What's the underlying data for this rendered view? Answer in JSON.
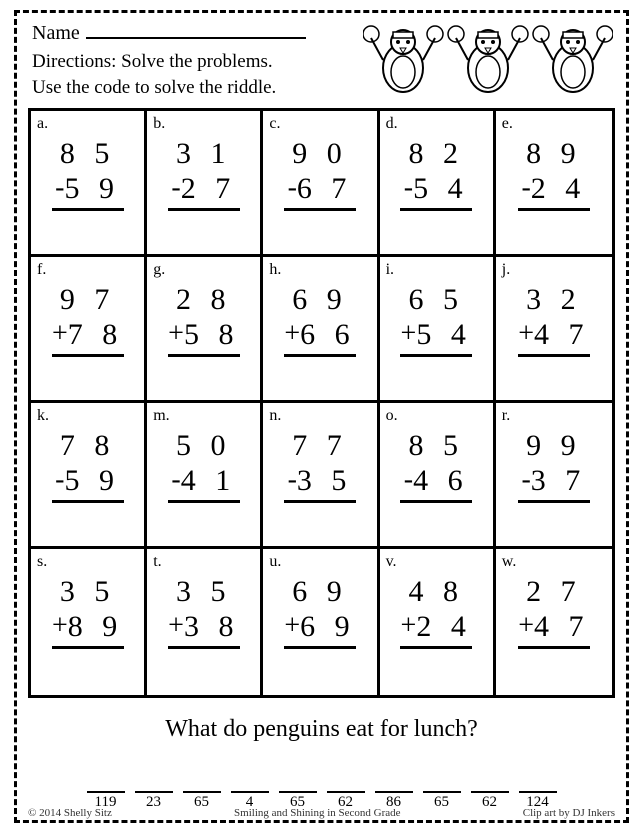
{
  "header": {
    "name_label": "Name",
    "directions_line1": "Directions:  Solve the problems.",
    "directions_line2": "Use the code to solve the riddle."
  },
  "grid": {
    "cells": [
      {
        "letter": "a.",
        "top": "8 5",
        "op": "-",
        "bottom": "5 9"
      },
      {
        "letter": "b.",
        "top": "3 1",
        "op": "-",
        "bottom": "2 7"
      },
      {
        "letter": "c.",
        "top": "9 0",
        "op": "-",
        "bottom": "6 7"
      },
      {
        "letter": "d.",
        "top": "8 2",
        "op": "-",
        "bottom": "5 4"
      },
      {
        "letter": "e.",
        "top": "8 9",
        "op": "-",
        "bottom": "2 4"
      },
      {
        "letter": "f.",
        "top": "9 7",
        "op": "+",
        "bottom": "7 8"
      },
      {
        "letter": "g.",
        "top": "2 8",
        "op": "+",
        "bottom": "5 8"
      },
      {
        "letter": "h.",
        "top": "6 9",
        "op": "+",
        "bottom": "6 6"
      },
      {
        "letter": "i.",
        "top": "6 5",
        "op": "+",
        "bottom": "5 4"
      },
      {
        "letter": "j.",
        "top": "3 2",
        "op": "+",
        "bottom": "4 7"
      },
      {
        "letter": "k.",
        "top": "7 8",
        "op": "-",
        "bottom": "5 9"
      },
      {
        "letter": "m.",
        "top": "5 0",
        "op": "-",
        "bottom": "4 1"
      },
      {
        "letter": "n.",
        "top": "7 7",
        "op": "-",
        "bottom": "3 5"
      },
      {
        "letter": "o.",
        "top": "8 5",
        "op": "-",
        "bottom": "4 6"
      },
      {
        "letter": "r.",
        "top": "9 9",
        "op": "-",
        "bottom": "3 7"
      },
      {
        "letter": "s.",
        "top": "3 5",
        "op": "+",
        "bottom": "8 9"
      },
      {
        "letter": "t.",
        "top": "3 5",
        "op": "+",
        "bottom": "3 8"
      },
      {
        "letter": "u.",
        "top": "6 9",
        "op": "+",
        "bottom": "6 9"
      },
      {
        "letter": "v.",
        "top": "4 8",
        "op": "+",
        "bottom": "2 4"
      },
      {
        "letter": "w.",
        "top": "2 7",
        "op": "+",
        "bottom": "4 7"
      }
    ]
  },
  "riddle": "What do penguins eat for lunch?",
  "answer_row": {
    "groups": [
      [
        "119",
        "23"
      ],
      [
        "65",
        "4"
      ],
      [
        "65",
        "62"
      ],
      [
        "86",
        "65"
      ],
      [
        "62",
        "124"
      ]
    ]
  },
  "footer": {
    "left": "© 2014 Shelly Sitz",
    "center": "Smiling and Shining in Second Grade",
    "right": "Clip art by DJ Inkers"
  }
}
